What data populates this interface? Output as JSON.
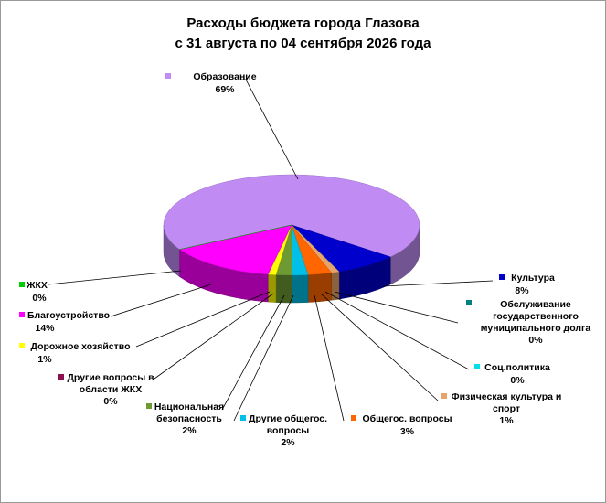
{
  "chart_data": {
    "type": "pie",
    "title": "Расходы бюджета города Глазова",
    "subtitle": "с 31 августа по 04 сентября 2026 года",
    "categories": [
      "Образование",
      "Культура",
      "Обслуживание государственного муниципального долга",
      "Соц.политика",
      "Физическая культура и спорт",
      "Общегос. вопросы",
      "Другие общегос. вопросы",
      "Национальная безопасность",
      "Другие вопросы в области ЖКХ",
      "Дорожное хозяйство",
      "Благоустройство",
      "ЖКХ"
    ],
    "values": [
      69,
      8,
      0,
      0,
      1,
      3,
      2,
      2,
      0,
      1,
      14,
      0
    ],
    "value_labels": [
      "69%",
      "8%",
      "0%",
      "0%",
      "1%",
      "3%",
      "2%",
      "2%",
      "0%",
      "1%",
      "14%",
      "0%"
    ],
    "colors": [
      "#c08cf4",
      "#0000cc",
      "#008080",
      "#00e0e8",
      "#e8a468",
      "#ff6600",
      "#00c0e8",
      "#6e9a34",
      "#8a1050",
      "#ffff00",
      "#ff00ff",
      "#00cc00"
    ]
  }
}
